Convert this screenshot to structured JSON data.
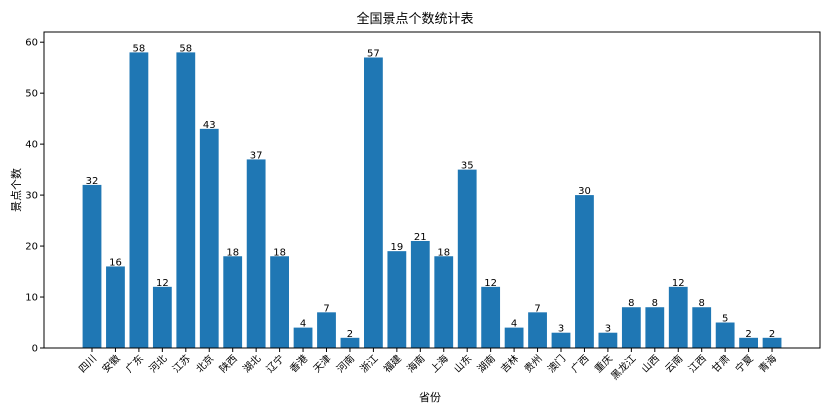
{
  "chart_data": {
    "type": "bar",
    "title": "全国景点个数统计表",
    "xlabel": "省份",
    "ylabel": "景点个数",
    "ylim": [
      0,
      62
    ],
    "yticks": [
      0,
      10,
      20,
      30,
      40,
      50,
      60
    ],
    "bar_color": "#1f77b4",
    "grid": false,
    "categories": [
      "四川",
      "安徽",
      "广东",
      "河北",
      "江苏",
      "北京",
      "陕西",
      "湖北",
      "辽宁",
      "香港",
      "天津",
      "河南",
      "浙江",
      "福建",
      "海南",
      "上海",
      "山东",
      "湖南",
      "吉林",
      "贵州",
      "澳门",
      "广西",
      "重庆",
      "黑龙江",
      "山西",
      "云南",
      "江西",
      "甘肃",
      "宁夏",
      "青海"
    ],
    "values": [
      32,
      16,
      58,
      12,
      58,
      43,
      18,
      37,
      18,
      4,
      7,
      2,
      57,
      19,
      21,
      18,
      35,
      12,
      4,
      7,
      3,
      30,
      3,
      8,
      8,
      12,
      8,
      5,
      2,
      2
    ]
  }
}
